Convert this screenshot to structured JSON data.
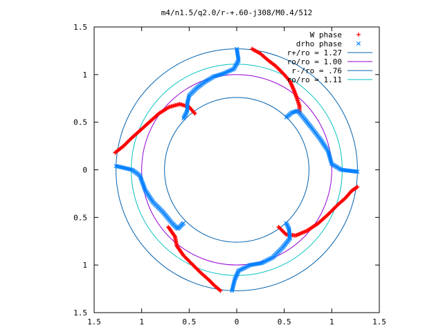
{
  "chart_data": {
    "type": "scatter",
    "title": "m4/n1.5/q2.0/r-+.60-j308/M0.4/512",
    "xlabel": "",
    "ylabel": "",
    "xlim": [
      -1.5,
      1.5
    ],
    "ylim": [
      -1.5,
      1.5
    ],
    "x_tick_values": [
      -1.5,
      -1,
      -0.5,
      0,
      0.5,
      1,
      1.5
    ],
    "x_tick_labels": [
      "1.5",
      "1",
      "0.5",
      "0",
      "0.5",
      "1",
      "1.5"
    ],
    "y_tick_values": [
      1.5,
      1,
      0.5,
      0,
      -0.5,
      -1,
      -1.5
    ],
    "y_tick_labels": [
      "1.5",
      "1",
      "0.5",
      "0",
      "0.5",
      "1",
      "1.5"
    ],
    "grid": false,
    "legend_position": "top-right",
    "markers": {
      "w_phase": {
        "name": "W phase",
        "symbol": "+",
        "color": "#ff0000"
      },
      "drho_phase": {
        "name": "drho phase",
        "symbol": "x",
        "color": "#0080ff"
      }
    },
    "circles": [
      {
        "name": "r+/ro = 1.27",
        "radius": 1.27,
        "color": "#0060ad"
      },
      {
        "name": "ro/ro = 1.00",
        "radius": 1.0,
        "color": "#9400d3"
      },
      {
        "name": "r-/ro = .76",
        "radius": 0.76,
        "color": "#0060ad"
      },
      {
        "name": "ro/ro = 1.11",
        "radius": 1.11,
        "color": "#00c0c0"
      }
    ],
    "w_phase_segments": [
      [
        [
          0.16,
          1.27
        ],
        [
          0.25,
          1.22
        ],
        [
          0.33,
          1.15
        ],
        [
          0.41,
          1.09
        ],
        [
          0.49,
          1.01
        ],
        [
          0.56,
          0.93
        ],
        [
          0.6,
          0.84
        ],
        [
          0.63,
          0.76
        ],
        [
          0.66,
          0.67
        ],
        [
          0.66,
          0.6
        ]
      ],
      [
        [
          -0.44,
          0.59
        ],
        [
          -0.5,
          0.66
        ],
        [
          -0.6,
          0.69
        ],
        [
          -0.71,
          0.66
        ],
        [
          -0.82,
          0.59
        ],
        [
          -0.92,
          0.5
        ],
        [
          -1.02,
          0.41
        ],
        [
          -1.11,
          0.33
        ],
        [
          -1.19,
          0.25
        ],
        [
          -1.28,
          0.18
        ]
      ],
      [
        [
          -0.72,
          -0.6
        ],
        [
          -0.65,
          -0.7
        ],
        [
          -0.63,
          -0.8
        ],
        [
          -0.56,
          -0.9
        ],
        [
          -0.46,
          -1.0
        ],
        [
          -0.38,
          -1.08
        ],
        [
          -0.3,
          -1.15
        ],
        [
          -0.23,
          -1.22
        ],
        [
          -0.17,
          -1.27
        ]
      ],
      [
        [
          0.44,
          -0.6
        ],
        [
          0.52,
          -0.68
        ],
        [
          0.62,
          -0.69
        ],
        [
          0.74,
          -0.64
        ],
        [
          0.86,
          -0.56
        ],
        [
          0.96,
          -0.47
        ],
        [
          1.06,
          -0.37
        ],
        [
          1.14,
          -0.3
        ],
        [
          1.21,
          -0.22
        ],
        [
          1.27,
          -0.18
        ]
      ]
    ],
    "drho_phase_segments": [
      [
        [
          0.0,
          1.27
        ],
        [
          0.02,
          1.15
        ],
        [
          -0.03,
          1.06
        ],
        [
          -0.14,
          1.01
        ],
        [
          -0.24,
          0.98
        ],
        [
          -0.34,
          0.92
        ],
        [
          -0.42,
          0.86
        ],
        [
          -0.5,
          0.78
        ],
        [
          -0.52,
          0.7
        ],
        [
          -0.52,
          0.62
        ],
        [
          -0.56,
          0.54
        ]
      ],
      [
        [
          0.52,
          0.55
        ],
        [
          0.58,
          0.6
        ],
        [
          0.64,
          0.62
        ],
        [
          0.7,
          0.55
        ],
        [
          0.78,
          0.45
        ],
        [
          0.88,
          0.32
        ],
        [
          0.96,
          0.2
        ],
        [
          1.0,
          0.06
        ],
        [
          1.1,
          0.0
        ],
        [
          1.27,
          -0.02
        ]
      ],
      [
        [
          -1.27,
          0.04
        ],
        [
          -1.1,
          0.0
        ],
        [
          -1.02,
          -0.06
        ],
        [
          -0.96,
          -0.22
        ],
        [
          -0.88,
          -0.34
        ],
        [
          -0.78,
          -0.44
        ],
        [
          -0.68,
          -0.56
        ],
        [
          -0.62,
          -0.62
        ],
        [
          -0.56,
          -0.56
        ]
      ],
      [
        [
          0.52,
          -0.56
        ],
        [
          0.55,
          -0.62
        ],
        [
          0.56,
          -0.72
        ],
        [
          0.48,
          -0.82
        ],
        [
          0.38,
          -0.92
        ],
        [
          0.26,
          -0.98
        ],
        [
          0.14,
          -1.0
        ],
        [
          0.02,
          -1.06
        ],
        [
          -0.02,
          -1.15
        ],
        [
          -0.05,
          -1.27
        ]
      ]
    ]
  }
}
